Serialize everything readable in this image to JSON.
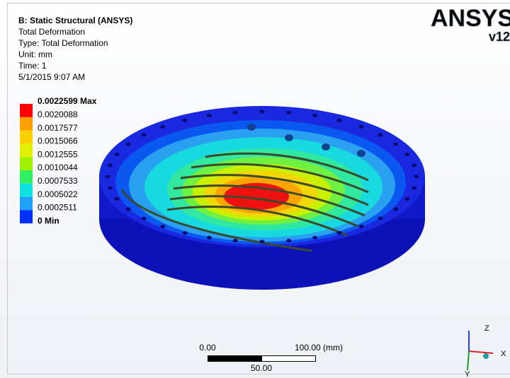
{
  "header": {
    "title": "B: Static Structural (ANSYS)",
    "lines": [
      "Total Deformation",
      "Type: Total Deformation",
      "Unit: mm",
      "Time: 1",
      "5/1/2015 9:07 AM"
    ]
  },
  "legend": {
    "labels": [
      "0.0022599 Max",
      "0.0020088",
      "0.0017577",
      "0.0015066",
      "0.0012555",
      "0.0010044",
      "0.0007533",
      "0.0005022",
      "0.0002511",
      "0 Min"
    ]
  },
  "logo": {
    "brand": "ANSYS",
    "version": "v12"
  },
  "scale_bar": {
    "start": "0.00",
    "end": "100.00 (mm)",
    "middle": "50.00"
  },
  "triad": {
    "z": "Z",
    "x": "X",
    "y": "Y"
  }
}
